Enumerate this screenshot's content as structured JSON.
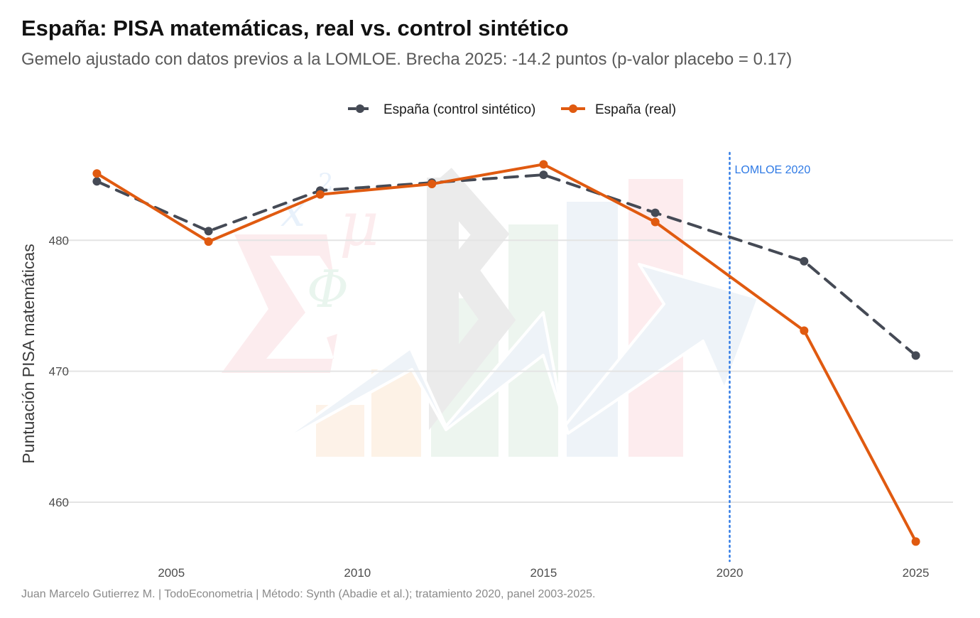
{
  "chart_data": {
    "type": "line",
    "title": "España: PISA matemáticas, real vs. control sintético",
    "subtitle": "Gemelo ajustado con datos previos a la LOMLOE. Brecha 2025: -14.2 puntos (p-valor placebo = 0.17)",
    "caption": "Juan Marcelo Gutierrez M. | TodoEconometria | Método: Synth (Abadie et al.); tratamiento 2020, panel 2003-2025.",
    "xlabel": "",
    "ylabel": "Puntuación PISA matemáticas",
    "x": [
      2003,
      2006,
      2009,
      2012,
      2015,
      2018,
      2022,
      2025
    ],
    "xlim": [
      2002,
      2026
    ],
    "ylim": [
      455.5,
      487.5
    ],
    "x_ticks": [
      2005,
      2010,
      2015,
      2020,
      2025
    ],
    "y_ticks": [
      460,
      470,
      480
    ],
    "grid": "horizontal",
    "legend_position": "top",
    "series": [
      {
        "name": "España (control sintético)",
        "color": "#454a55",
        "style": "dashed",
        "values": [
          484.5,
          480.7,
          483.8,
          484.4,
          485.0,
          482.1,
          478.4,
          471.2
        ]
      },
      {
        "name": "España (real)",
        "color": "#e05a10",
        "style": "solid",
        "values": [
          485.1,
          479.9,
          483.5,
          484.3,
          485.8,
          481.4,
          473.1,
          457.0
        ]
      }
    ],
    "annotations": [
      {
        "type": "vline",
        "x": 2020,
        "label": "LOMLOE 2020",
        "color": "#2f7ae5",
        "style": "dotted"
      }
    ]
  }
}
